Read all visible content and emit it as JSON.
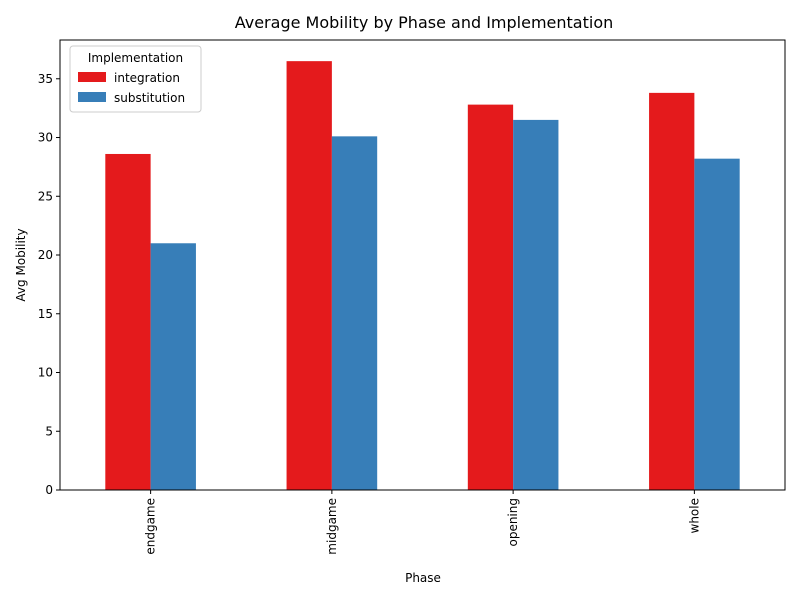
{
  "chart_data": {
    "type": "bar",
    "title": "Average Mobility by Phase and Implementation",
    "xlabel": "Phase",
    "ylabel": "Avg Mobility",
    "categories": [
      "endgame",
      "midgame",
      "opening",
      "whole"
    ],
    "series": [
      {
        "name": "integration",
        "color": "#e41a1c",
        "values": [
          28.6,
          36.5,
          32.8,
          33.8
        ]
      },
      {
        "name": "substitution",
        "color": "#377eb8",
        "values": [
          21.0,
          30.1,
          31.5,
          28.2
        ]
      }
    ],
    "ylim": [
      0,
      38.3
    ],
    "yticks": [
      0,
      5,
      10,
      15,
      20,
      25,
      30,
      35
    ],
    "grid": false,
    "legend": {
      "title": "Implementation",
      "placement": "top-left"
    }
  }
}
